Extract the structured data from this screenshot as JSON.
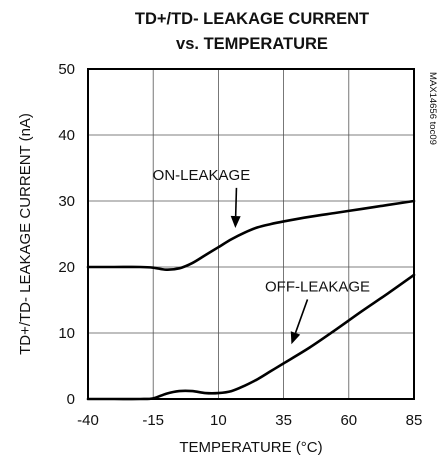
{
  "chart_data": {
    "type": "line",
    "title": [
      "TD+/TD- LEAKAGE CURRENT",
      "vs. TEMPERATURE"
    ],
    "xlabel": "TEMPERATURE (°C)",
    "ylabel": "TD+/TD- LEAKAGE CURRENT (nA)",
    "xlim": [
      -40,
      85
    ],
    "ylim": [
      0,
      50
    ],
    "xticks": [
      -40,
      -15,
      10,
      35,
      60,
      85
    ],
    "yticks": [
      0,
      10,
      20,
      30,
      40,
      50
    ],
    "xtick_labels": [
      "-40",
      "-15",
      "10",
      "35",
      "60",
      "85"
    ],
    "ytick_labels": [
      "0",
      "10",
      "20",
      "30",
      "40",
      "50"
    ],
    "grid": true,
    "series": [
      {
        "name": "ON-LEAKAGE",
        "x": [
          -40,
          -30,
          -20,
          -15,
          -10,
          -5,
          0,
          5,
          10,
          15,
          20,
          25,
          30,
          35,
          45,
          55,
          65,
          75,
          85
        ],
        "y": [
          20,
          20,
          20,
          19.9,
          19.6,
          19.8,
          20.6,
          21.8,
          23.0,
          24.2,
          25.2,
          26.0,
          26.5,
          26.9,
          27.6,
          28.2,
          28.8,
          29.4,
          30.0
        ]
      },
      {
        "name": "OFF-LEAKAGE",
        "x": [
          -40,
          -30,
          -20,
          -15,
          -10,
          -5,
          0,
          5,
          10,
          15,
          20,
          25,
          30,
          35,
          45,
          55,
          65,
          75,
          85
        ],
        "y": [
          0,
          0,
          0,
          0.1,
          0.8,
          1.2,
          1.2,
          0.9,
          0.9,
          1.2,
          2.0,
          3.0,
          4.2,
          5.4,
          7.8,
          10.5,
          13.3,
          16.0,
          18.8
        ]
      }
    ],
    "annotations": [
      {
        "text": "ON-LEAKAGE",
        "x": 3.5,
        "y": 33.2,
        "arrow_to": [
          16.5,
          25.9
        ]
      },
      {
        "text": "OFF-LEAKAGE",
        "x": 48,
        "y": 16.3,
        "arrow_to": [
          38,
          8.3
        ]
      }
    ],
    "side_note": "MAX14656 toc09"
  }
}
